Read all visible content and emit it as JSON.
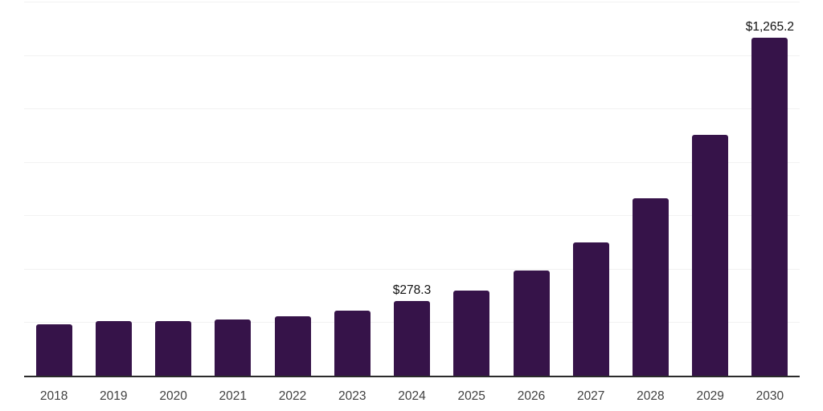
{
  "chart_data": {
    "type": "bar",
    "title": "",
    "xlabel": "",
    "ylabel": "",
    "categories": [
      "2018",
      "2019",
      "2020",
      "2021",
      "2022",
      "2023",
      "2024",
      "2025",
      "2026",
      "2027",
      "2028",
      "2029",
      "2030"
    ],
    "values": [
      193,
      203,
      205,
      211,
      223,
      243,
      278.3,
      320,
      393,
      500,
      663,
      902,
      1265.2
    ],
    "annotations": [
      {
        "category": "2024",
        "text": "$278.3"
      },
      {
        "category": "2030",
        "text": "$1,265.2"
      }
    ],
    "ylim": [
      0,
      1400
    ],
    "gridline_step": 200,
    "grid": "horizontal",
    "legend": "none",
    "colors": {
      "bar": "#361349",
      "gridline": "#f2f2f2",
      "axis_line": "#2b2b2b",
      "tick_label": "#404040",
      "data_label": "#111111",
      "background": "#ffffff"
    }
  }
}
